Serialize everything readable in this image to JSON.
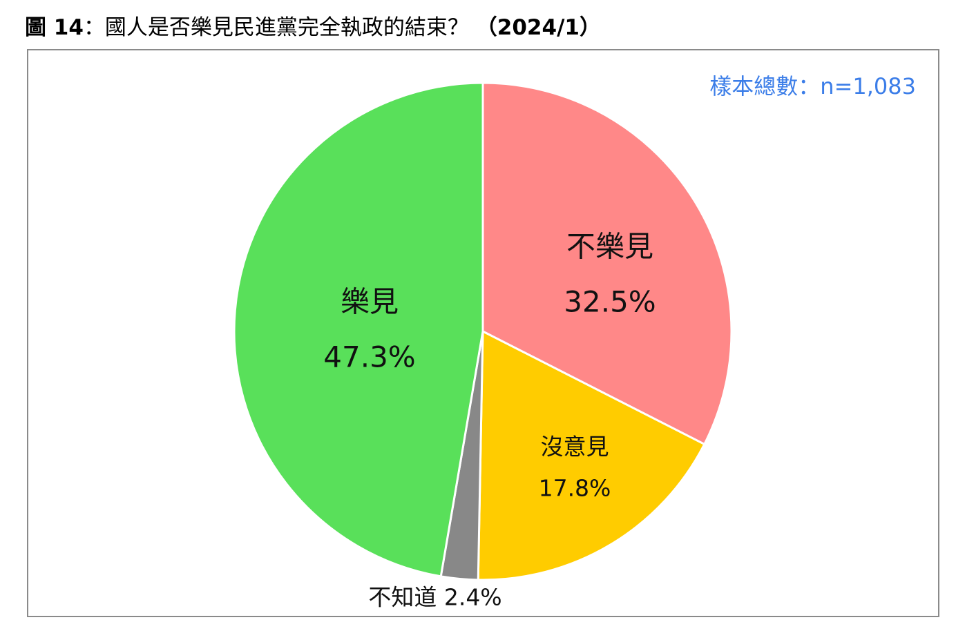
{
  "title": {
    "prefix": "圖 14",
    "text": "：國人是否樂見民進黨完全執政的結束？",
    "date": "（2024/1）"
  },
  "sample_note": "樣本總數：n=1,083",
  "chart_data": {
    "type": "pie",
    "title": "圖 14：國人是否樂見民進黨完全執政的結束？（2024/1）",
    "start_angle_deg": 0,
    "direction": "clockwise",
    "slices": [
      {
        "name": "不樂見",
        "value": 32.5,
        "display": "32.5%",
        "color": "#ff8888"
      },
      {
        "name": "沒意見",
        "value": 17.8,
        "display": "17.8%",
        "color": "#ffcc00"
      },
      {
        "name": "不知道",
        "value": 2.4,
        "display": "2.4%",
        "color": "#888888"
      },
      {
        "name": "樂見",
        "value": 47.3,
        "display": "47.3%",
        "color": "#59e05a"
      }
    ]
  }
}
